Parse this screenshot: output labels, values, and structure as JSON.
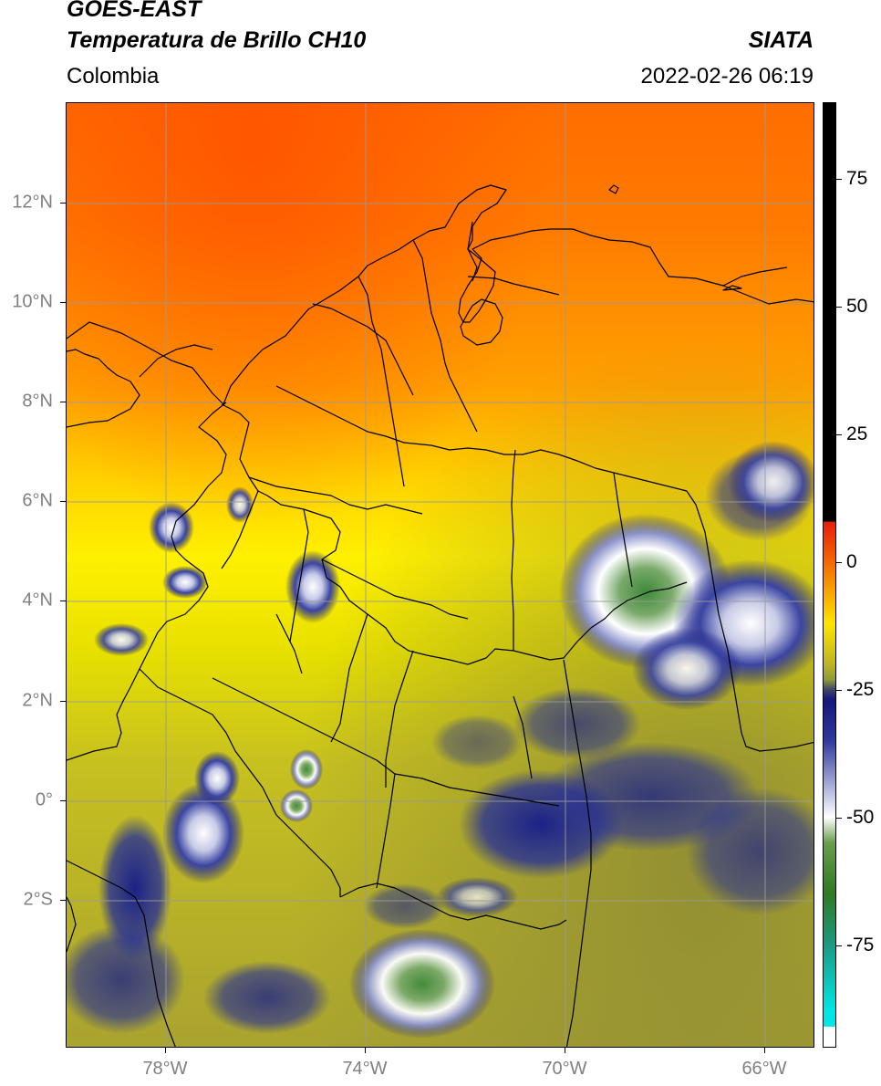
{
  "header": {
    "satellite": "GOES-EAST",
    "product": "Temperatura de Brillo CH10",
    "region": "Colombia",
    "source": "SIATA",
    "datetime": "2022-02-26 06:19"
  },
  "map": {
    "lat_ticks": [
      "12°N",
      "10°N",
      "8°N",
      "6°N",
      "4°N",
      "2°N",
      "0°",
      "2°S"
    ],
    "lon_ticks": [
      "78°W",
      "74°W",
      "70°W",
      "66°W"
    ],
    "gridlines": true
  },
  "colorbar": {
    "tick_labels": [
      "75",
      "50",
      "25",
      "0",
      "-25",
      "-50",
      "-75"
    ],
    "tick_values": [
      75,
      50,
      25,
      0,
      -25,
      -50,
      -75
    ],
    "range": [
      -95,
      90
    ],
    "color_stops": [
      {
        "value": 90,
        "color": "#000000"
      },
      {
        "value": 8,
        "color": "#000000"
      },
      {
        "value": 7.9,
        "color": "#e81c0c"
      },
      {
        "value": 0,
        "color": "#f26a00"
      },
      {
        "value": -12,
        "color": "#ffe400"
      },
      {
        "value": -20,
        "color": "#bdb523"
      },
      {
        "value": -23,
        "color": "#8f9a38"
      },
      {
        "value": -25,
        "color": "#3f4567"
      },
      {
        "value": -27,
        "color": "#13187a"
      },
      {
        "value": -35,
        "color": "#2f3a9c"
      },
      {
        "value": -45,
        "color": "#b9bedf"
      },
      {
        "value": -50,
        "color": "#ffffff"
      },
      {
        "value": -55,
        "color": "#6a9e4a"
      },
      {
        "value": -65,
        "color": "#2f7a22"
      },
      {
        "value": -75,
        "color": "#1a9a82"
      },
      {
        "value": -88,
        "color": "#00e6e6"
      },
      {
        "value": -91,
        "color": "#00e6e6"
      },
      {
        "value": -91.1,
        "color": "#ffffff"
      },
      {
        "value": -95,
        "color": "#ffffff"
      }
    ]
  }
}
